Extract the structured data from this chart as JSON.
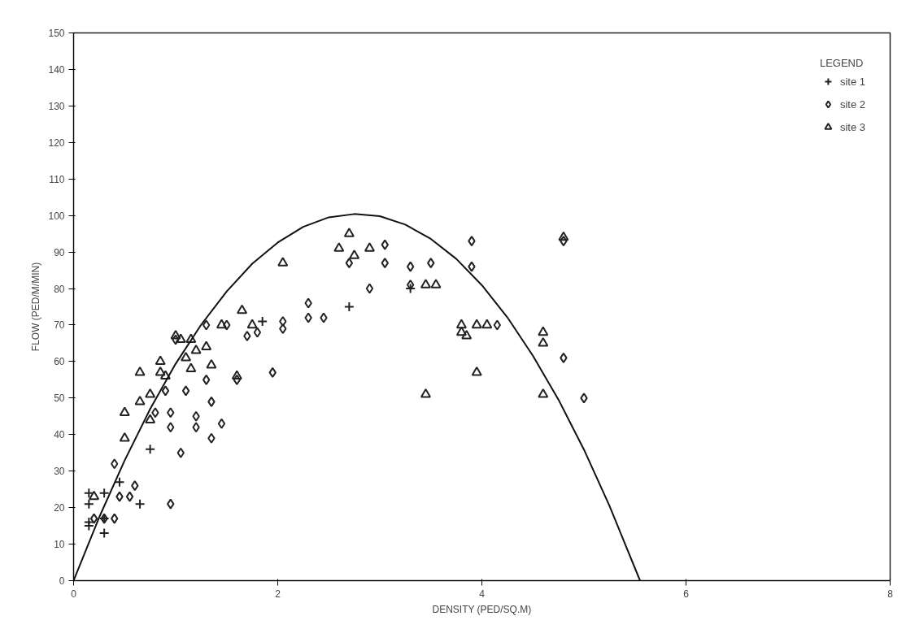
{
  "chart_data": {
    "type": "scatter",
    "xlabel": "DENSITY (PED/SQ.M)",
    "ylabel": "FLOW (PED/M/MIN)",
    "legend_title": "LEGEND",
    "xlim": [
      0,
      8
    ],
    "xticks": [
      0,
      2,
      4,
      6,
      8
    ],
    "ylim": [
      0,
      150
    ],
    "yticks": [
      0,
      10,
      20,
      30,
      40,
      50,
      60,
      70,
      80,
      90,
      100,
      110,
      120,
      130,
      140,
      150
    ],
    "grid": false,
    "legend": "top right",
    "series": [
      {
        "name": "site 1",
        "marker": "cross",
        "color": "#222222",
        "x": [
          0.15,
          0.15,
          0.15,
          0.15,
          0.3,
          0.3,
          0.3,
          0.45,
          0.65,
          0.75,
          1.85,
          2.7,
          3.3
        ],
        "values": [
          15,
          16,
          21,
          24,
          13,
          17,
          24,
          27,
          21,
          36,
          71,
          75,
          80
        ]
      },
      {
        "name": "site 2",
        "marker": "diamond",
        "color": "#222222",
        "x": [
          0.2,
          0.3,
          0.4,
          0.45,
          0.55,
          0.6,
          0.4,
          0.95,
          1.05,
          0.8,
          0.95,
          1.2,
          1.2,
          1.35,
          1.45,
          0.95,
          0.9,
          1.1,
          1.3,
          1.35,
          1.0,
          1.3,
          1.5,
          1.7,
          1.6,
          1.95,
          1.8,
          2.05,
          2.05,
          2.3,
          2.3,
          2.45,
          2.7,
          2.9,
          3.05,
          3.05,
          3.3,
          3.3,
          3.5,
          3.9,
          3.9,
          4.15,
          4.8,
          4.8,
          5.0
        ],
        "values": [
          17,
          17,
          17,
          23,
          23,
          26,
          32,
          21,
          35,
          46,
          46,
          45,
          42,
          39,
          43,
          42,
          52,
          52,
          55,
          49,
          66,
          70,
          70,
          67,
          55,
          57,
          68,
          71,
          69,
          76,
          72,
          72,
          87,
          80,
          92,
          87,
          86,
          81,
          87,
          93,
          86,
          70,
          93,
          61,
          50
        ]
      },
      {
        "name": "site 3",
        "marker": "triangle",
        "color": "#222222",
        "x": [
          0.2,
          0.5,
          0.5,
          0.65,
          0.65,
          0.75,
          0.75,
          0.85,
          0.85,
          0.9,
          1.0,
          1.05,
          1.15,
          1.1,
          1.2,
          1.15,
          1.3,
          1.35,
          1.45,
          1.6,
          1.65,
          1.75,
          2.05,
          2.6,
          2.7,
          2.75,
          2.9,
          3.45,
          3.55,
          3.45,
          3.8,
          3.8,
          3.85,
          3.95,
          4.05,
          3.95,
          4.6,
          4.6,
          4.6,
          4.8
        ],
        "values": [
          23,
          39,
          46,
          57,
          49,
          44,
          51,
          60,
          57,
          56,
          67,
          66,
          66,
          61,
          63,
          58,
          64,
          59,
          70,
          56,
          74,
          70,
          87,
          91,
          95,
          89,
          91,
          81,
          81,
          51,
          70,
          68,
          67,
          70,
          70,
          57,
          68,
          65,
          51,
          94
        ]
      },
      {
        "type": "line",
        "color": "#111111",
        "x": [
          0,
          0.25,
          0.5,
          0.75,
          1,
          1.25,
          1.5,
          1.75,
          2,
          2.25,
          2.5,
          2.75,
          3,
          3.25,
          3.5,
          3.75,
          4,
          4.25,
          4.5,
          4.75,
          5,
          5.25,
          5.55
        ],
        "values": [
          0,
          17.3,
          32.9,
          47.0,
          59.4,
          70.1,
          79.2,
          86.8,
          92.6,
          96.9,
          99.5,
          100.4,
          99.8,
          97.5,
          93.6,
          88.1,
          80.9,
          72.1,
          61.6,
          49.6,
          35.9,
          20.5,
          0
        ]
      }
    ]
  }
}
